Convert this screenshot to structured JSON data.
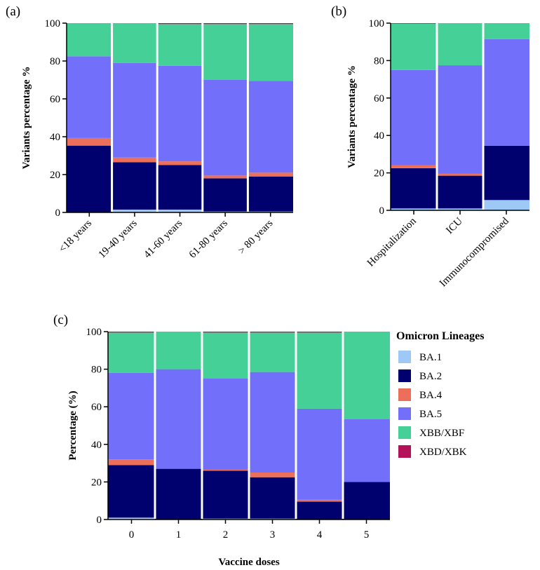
{
  "colors": {
    "BA.1": "#9ec8f5",
    "BA.2": "#00006e",
    "BA.4": "#ec6f5c",
    "BA.5": "#7270fa",
    "XBB/XBF": "#44d096",
    "XBD/XBK": "#b41258"
  },
  "legend": {
    "title": "Omicron Lineages",
    "items": [
      "BA.1",
      "BA.2",
      "BA.4",
      "BA.5",
      "XBB/XBF",
      "XBD/XBK"
    ]
  },
  "chart_data": [
    {
      "panel": "(a)",
      "type": "bar",
      "stacked": true,
      "ylabel": "Variants percentage %",
      "xlabel": "",
      "ylim": [
        0,
        100
      ],
      "yticks": [
        0,
        20,
        40,
        60,
        80,
        100
      ],
      "categories": [
        "<18 years",
        "19-40 years",
        "41-60 years",
        "61-80 years",
        "> 80 years"
      ],
      "series": [
        {
          "name": "BA.1",
          "values": [
            0,
            1.5,
            1.5,
            0.5,
            0.5
          ]
        },
        {
          "name": "BA.2",
          "values": [
            35.3,
            25,
            23.5,
            17.5,
            18.5
          ]
        },
        {
          "name": "BA.4",
          "values": [
            4,
            2.5,
            2,
            1.5,
            2
          ]
        },
        {
          "name": "BA.5",
          "values": [
            43.2,
            50,
            50.5,
            50.5,
            48.5
          ]
        },
        {
          "name": "XBB/XBF",
          "values": [
            17.5,
            21,
            22,
            29.5,
            30
          ]
        },
        {
          "name": "XBD/XBK",
          "values": [
            0,
            0,
            0.5,
            0.5,
            0.5
          ]
        }
      ]
    },
    {
      "panel": "(b)",
      "type": "bar",
      "stacked": true,
      "ylabel": "Variants percentage %",
      "xlabel": "",
      "ylim": [
        0,
        100
      ],
      "yticks": [
        0,
        20,
        40,
        60,
        80,
        100
      ],
      "categories": [
        "Hospitalization",
        "ICU",
        "Immunocompromised"
      ],
      "series": [
        {
          "name": "BA.1",
          "values": [
            1,
            1,
            5.5
          ]
        },
        {
          "name": "BA.2",
          "values": [
            21.5,
            17.5,
            29
          ]
        },
        {
          "name": "BA.4",
          "values": [
            1.5,
            1,
            0
          ]
        },
        {
          "name": "BA.5",
          "values": [
            51,
            58,
            57
          ]
        },
        {
          "name": "XBB/XBF",
          "values": [
            24.7,
            22.5,
            8.5
          ]
        },
        {
          "name": "XBD/XBK",
          "values": [
            0.3,
            0,
            0
          ]
        }
      ]
    },
    {
      "panel": "(c)",
      "type": "bar",
      "stacked": true,
      "ylabel": "Percentage (%)",
      "xlabel": "Vaccine doses",
      "ylim": [
        0,
        100
      ],
      "yticks": [
        0,
        20,
        40,
        60,
        80,
        100
      ],
      "categories": [
        "0",
        "1",
        "2",
        "3",
        "4",
        "5"
      ],
      "series": [
        {
          "name": "BA.1",
          "values": [
            1,
            0,
            0.5,
            0.5,
            0,
            0
          ]
        },
        {
          "name": "BA.2",
          "values": [
            28,
            27,
            25.5,
            22,
            9.5,
            20
          ]
        },
        {
          "name": "BA.4",
          "values": [
            3,
            0,
            0.5,
            2.5,
            1,
            0
          ]
        },
        {
          "name": "BA.5",
          "values": [
            46,
            53,
            48.5,
            53.5,
            48.5,
            33.5
          ]
        },
        {
          "name": "XBB/XBF",
          "values": [
            21.5,
            20,
            24.5,
            21,
            40.5,
            46.5
          ]
        },
        {
          "name": "XBD/XBK",
          "values": [
            0.5,
            0,
            0.5,
            0.5,
            0.5,
            0
          ]
        }
      ]
    }
  ]
}
